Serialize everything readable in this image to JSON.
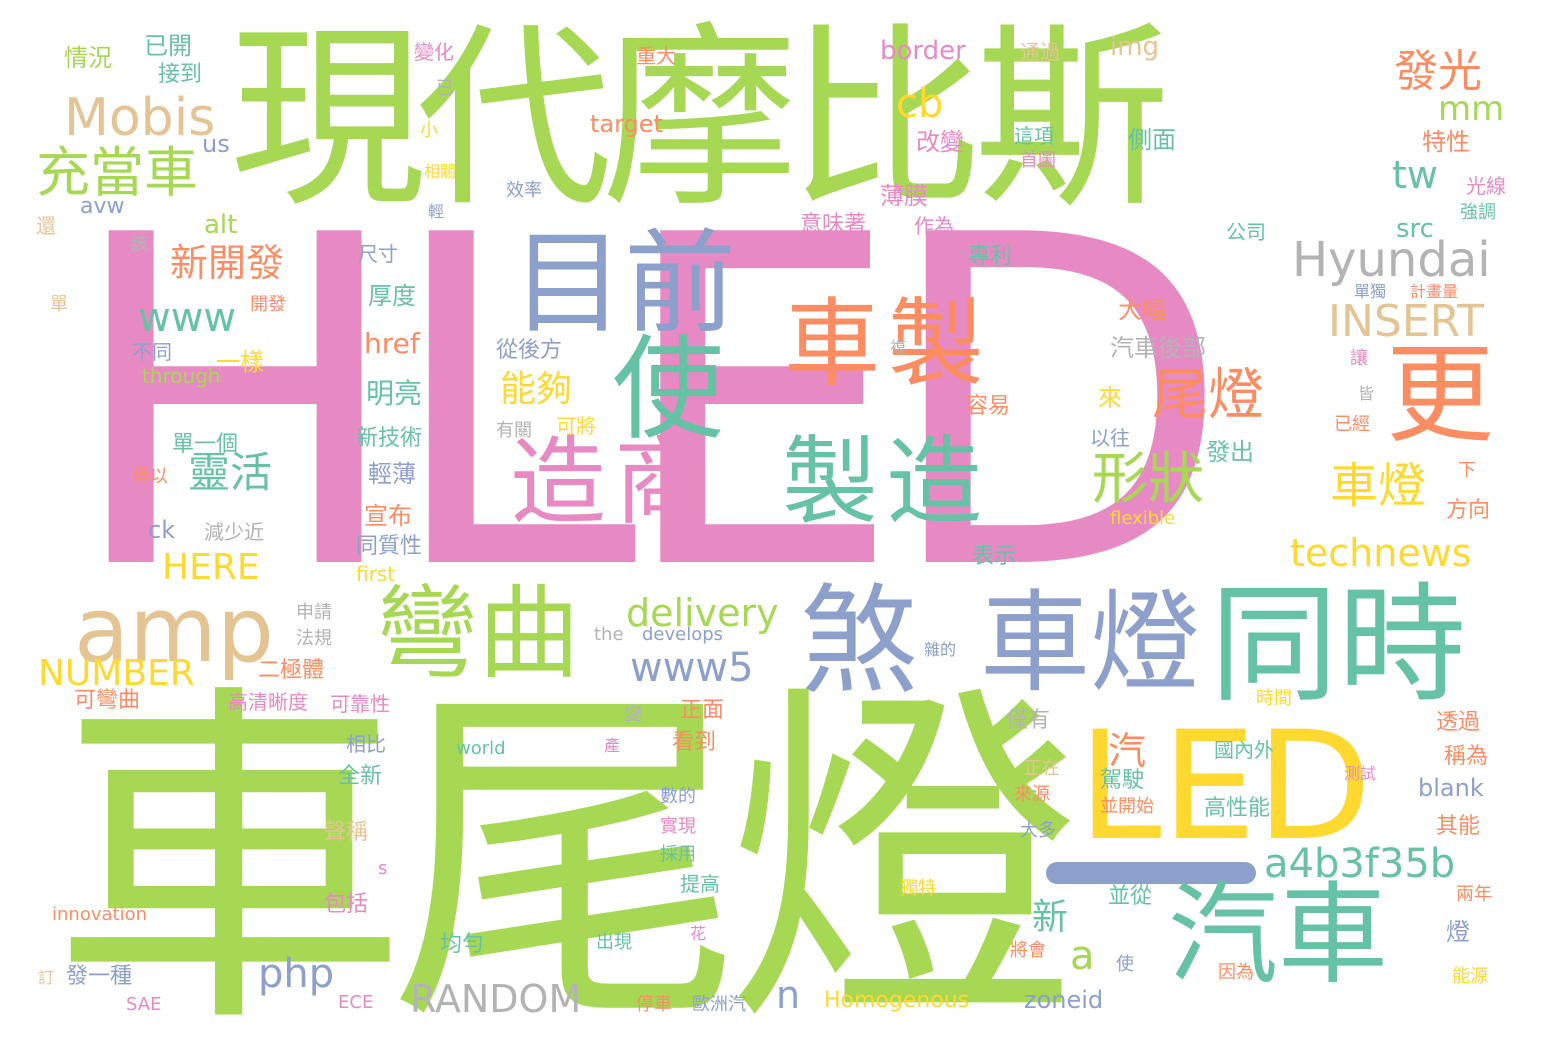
{
  "palette": {
    "pink": "#e78ac3",
    "green": "#a6d854",
    "teal": "#66c2a5",
    "orange": "#fc8d62",
    "blue": "#8da0cb",
    "yellow": "#ffd92f",
    "tan": "#e5c494",
    "grey": "#b3b3b3"
  },
  "words": [
    {
      "text": "HLED"
    },
    {
      "text": "車尾燈"
    },
    {
      "text": "現代摩比斯"
    },
    {
      "text": "目前"
    },
    {
      "text": "使"
    },
    {
      "text": "車製"
    },
    {
      "text": "更"
    },
    {
      "text": "造商"
    },
    {
      "text": "製造"
    },
    {
      "text": "尾燈"
    },
    {
      "text": "形狀"
    },
    {
      "text": "車燈"
    },
    {
      "text": "amp"
    },
    {
      "text": "Mobis"
    },
    {
      "text": "充當車"
    },
    {
      "text": "發光"
    },
    {
      "text": "Hyundai"
    },
    {
      "text": "INSERT"
    },
    {
      "text": "cb"
    },
    {
      "text": "mm"
    },
    {
      "text": "tw"
    },
    {
      "text": "煞"
    },
    {
      "text": "車燈"
    },
    {
      "text": "同時"
    },
    {
      "text": "LED"
    },
    {
      "text": "汽車"
    },
    {
      "text": "彎曲"
    },
    {
      "text": "delivery"
    },
    {
      "text": "www5"
    },
    {
      "text": "a4b3f35b"
    },
    {
      "text": "technews"
    },
    {
      "text": "新開發"
    },
    {
      "text": "www"
    },
    {
      "text": "靈活"
    },
    {
      "text": "HERE"
    },
    {
      "text": "NUMBER"
    },
    {
      "text": "php"
    },
    {
      "text": "RANDOM"
    },
    {
      "text": "能夠"
    },
    {
      "text": "汽"
    },
    {
      "text": "新"
    },
    {
      "text": "a"
    },
    {
      "text": "n"
    },
    {
      "text": "情況"
    },
    {
      "text": "已開"
    },
    {
      "text": "接到"
    },
    {
      "text": "變化"
    },
    {
      "text": "已"
    },
    {
      "text": "小"
    },
    {
      "text": "重大"
    },
    {
      "text": "border"
    },
    {
      "text": "通過"
    },
    {
      "text": "img"
    },
    {
      "text": "target"
    },
    {
      "text": "us"
    },
    {
      "text": "相關"
    },
    {
      "text": "改變"
    },
    {
      "text": "這項"
    },
    {
      "text": "首圖"
    },
    {
      "text": "側面"
    },
    {
      "text": "特性"
    },
    {
      "text": "光線"
    },
    {
      "text": "強調"
    },
    {
      "text": "avw"
    },
    {
      "text": "效率"
    },
    {
      "text": "輕"
    },
    {
      "text": "薄膜"
    },
    {
      "text": "意味著"
    },
    {
      "text": "作為"
    },
    {
      "text": "公司"
    },
    {
      "text": "src"
    },
    {
      "text": "alt"
    },
    {
      "text": "還"
    },
    {
      "text": "該"
    },
    {
      "text": "尺寸"
    },
    {
      "text": "專利"
    },
    {
      "text": "單"
    },
    {
      "text": "開發"
    },
    {
      "text": "厚度"
    },
    {
      "text": "大幅"
    },
    {
      "text": "單獨"
    },
    {
      "text": "計畫量"
    },
    {
      "text": "不同"
    },
    {
      "text": "一樣"
    },
    {
      "text": "through"
    },
    {
      "text": "href"
    },
    {
      "text": "複"
    },
    {
      "text": "從後方"
    },
    {
      "text": "汽車後部"
    },
    {
      "text": "讓"
    },
    {
      "text": "明亮"
    },
    {
      "text": "來"
    },
    {
      "text": "容易"
    },
    {
      "text": "皆"
    },
    {
      "text": "已經"
    },
    {
      "text": "單一個"
    },
    {
      "text": "有關"
    },
    {
      "text": "可將"
    },
    {
      "text": "以往"
    },
    {
      "text": "新技術"
    },
    {
      "text": "得以"
    },
    {
      "text": "輕薄"
    },
    {
      "text": "發出"
    },
    {
      "text": "下"
    },
    {
      "text": "方向"
    },
    {
      "text": "減少近"
    },
    {
      "text": "ck"
    },
    {
      "text": "宣布"
    },
    {
      "text": "flexible"
    },
    {
      "text": "同質性"
    },
    {
      "text": "表示"
    },
    {
      "text": "first"
    },
    {
      "text": "申請"
    },
    {
      "text": "法規"
    },
    {
      "text": "the"
    },
    {
      "text": "develops"
    },
    {
      "text": "雜的"
    },
    {
      "text": "二極體"
    },
    {
      "text": "可彎曲"
    },
    {
      "text": "高清晰度"
    },
    {
      "text": "可靠性"
    },
    {
      "text": "變"
    },
    {
      "text": "正面"
    },
    {
      "text": "時間"
    },
    {
      "text": "僅有"
    },
    {
      "text": "透過"
    },
    {
      "text": "相比"
    },
    {
      "text": "world"
    },
    {
      "text": "產"
    },
    {
      "text": "看到"
    },
    {
      "text": "國內外"
    },
    {
      "text": "稱為"
    },
    {
      "text": "全新"
    },
    {
      "text": "正在"
    },
    {
      "text": "駕駛"
    },
    {
      "text": "測試"
    },
    {
      "text": "來源"
    },
    {
      "text": "並開始"
    },
    {
      "text": "blank"
    },
    {
      "text": "數的"
    },
    {
      "text": "實現"
    },
    {
      "text": "高性能"
    },
    {
      "text": "聲稱"
    },
    {
      "text": "大多"
    },
    {
      "text": "其能"
    },
    {
      "text": "採用"
    },
    {
      "text": "s"
    },
    {
      "text": "包括"
    },
    {
      "text": "提高"
    },
    {
      "text": "獨特"
    },
    {
      "text": "並從"
    },
    {
      "text": "兩年"
    },
    {
      "text": "innovation"
    },
    {
      "text": "燈"
    },
    {
      "text": "花"
    },
    {
      "text": "均勻"
    },
    {
      "text": "出現"
    },
    {
      "text": "將會"
    },
    {
      "text": "使"
    },
    {
      "text": "訂"
    },
    {
      "text": "發一種"
    },
    {
      "text": "因為"
    },
    {
      "text": "能源"
    },
    {
      "text": "SAE"
    },
    {
      "text": "ECE"
    },
    {
      "text": "停車"
    },
    {
      "text": "歐洲汽"
    },
    {
      "text": "Homogenous"
    },
    {
      "text": "zoneid"
    }
  ]
}
